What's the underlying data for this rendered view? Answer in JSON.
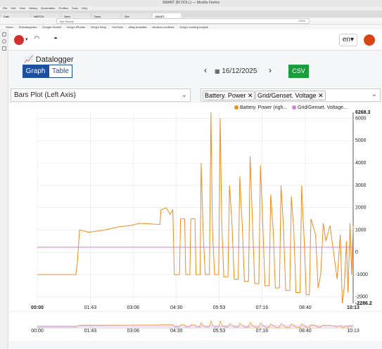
{
  "browser": {
    "window_title": "SMART (BI DOLL) — Mozilla Firefox",
    "menu": [
      "File",
      "Edit",
      "View",
      "History",
      "Bookmarks",
      "Profiles",
      "Tools",
      "Help"
    ],
    "tabs": [
      "Calc",
      "WATCH",
      "Gem",
      "Docs",
      "Gre",
      "SMART"
    ],
    "security": "Not Secure",
    "zoom": "110%",
    "bookmarks": [
      "Home",
      "Subcategories",
      "Google Gemini",
      "Greg's iPhotos",
      "Greg's Story",
      "YouTube",
      "eBay Australia",
      "Amazon contents",
      "Greg's cooking recipes"
    ]
  },
  "app": {
    "language": "en",
    "heading": "Datalogger",
    "view_buttons": [
      "Graph",
      "Table"
    ],
    "date": "16/12/2025",
    "csv": "CSV",
    "plot_mode": "Bars Plot (Left Axis)"
  },
  "chart_data": {
    "type": "line",
    "legend_labels": [
      "Battery. Power (righ...",
      "Grid/Genset. Voltage..."
    ],
    "series": [
      {
        "name": "Battery. Power",
        "color": "#f28c1e",
        "x": [
          0,
          75,
          78,
          82,
          100,
          130,
          160,
          180,
          200,
          238,
          240,
          250,
          258,
          263,
          266,
          276,
          278,
          286,
          288,
          296,
          298,
          306,
          308,
          316,
          318,
          322,
          326,
          334,
          337,
          340,
          344,
          352,
          355,
          358,
          362,
          370,
          373,
          378,
          382,
          390,
          393,
          398,
          402,
          410,
          413,
          418,
          422,
          430,
          433,
          438,
          442,
          450,
          453,
          458,
          462,
          470,
          473,
          478,
          482,
          490,
          493,
          498,
          502,
          510,
          513,
          518,
          522,
          528,
          531,
          540,
          545,
          550,
          555,
          560,
          568,
          575,
          582,
          588,
          592,
          596,
          600,
          603,
          607,
          610,
          613
        ],
        "values": [
          -1000,
          -1000,
          -400,
          1000,
          900,
          1000,
          1150,
          1200,
          1300,
          1250,
          1900,
          2000,
          1700,
          1900,
          -1000,
          -1000,
          1500,
          1500,
          -1000,
          -1000,
          1500,
          1500,
          -1000,
          -1000,
          4000,
          800,
          -1000,
          -1000,
          6268.3,
          1000,
          -1000,
          -1000,
          6000,
          1300,
          -1100,
          -1100,
          3000,
          1200,
          -1200,
          -1200,
          3400,
          1100,
          -1300,
          -1300,
          4300,
          1100,
          -1400,
          -1400,
          3900,
          1000,
          -1500,
          -1500,
          2600,
          900,
          -1600,
          -1600,
          3000,
          1000,
          -1700,
          -1700,
          2500,
          900,
          -1800,
          -1800,
          3000,
          500,
          -1900,
          -1900,
          1500,
          800,
          -1600,
          -1000,
          1300,
          500,
          1200,
          0,
          -1200,
          800,
          -2286.2,
          -1500,
          500,
          -1800,
          1300,
          -1000,
          1200
        ]
      },
      {
        "name": "Grid/Genset. Voltage",
        "color": "#d77fd6",
        "x": [
          0,
          613
        ],
        "values": [
          230,
          230
        ]
      }
    ],
    "xlim": [
      0,
      613
    ],
    "xticks": [
      {
        "value": 0,
        "label": "00:00"
      },
      {
        "value": 103,
        "label": "01:43"
      },
      {
        "value": 186,
        "label": "03:06"
      },
      {
        "value": 270,
        "label": "04:30"
      },
      {
        "value": 353,
        "label": "05:53"
      },
      {
        "value": 436,
        "label": "07:16"
      },
      {
        "value": 520,
        "label": "08:40"
      },
      {
        "value": 613,
        "label": "10:13"
      }
    ],
    "ylim": [
      -2286.2,
      6268.3
    ],
    "yticks": [
      -2000,
      -1000,
      0,
      1000,
      2000,
      3000,
      4000,
      5000,
      6000
    ],
    "grid": true
  }
}
